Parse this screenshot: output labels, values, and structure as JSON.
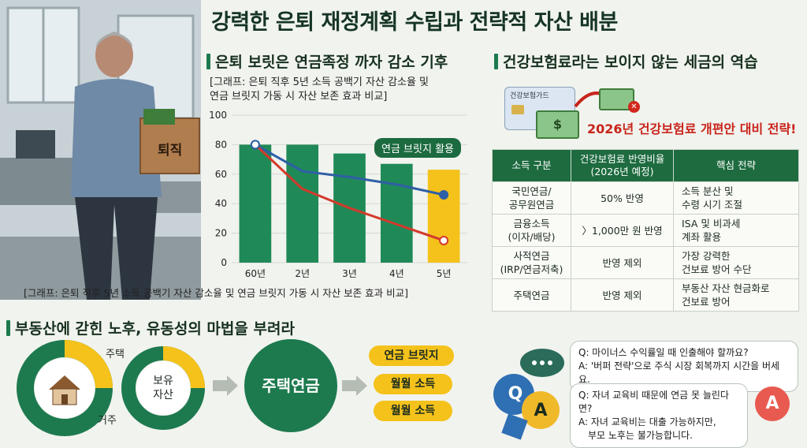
{
  "title": "강력한 은퇴 재정계획 수립과 전략적 자산 배분",
  "illustration": {
    "box_label": "퇴직"
  },
  "section_chart": {
    "heading": "은퇴 보릿은 연금족정 까자 감소 기후",
    "note_line1": "[그래프: 은퇴 직후 5년 소득 공백기 자산 감소율 및",
    "note_line2": "연금 브릿지 가동 시 자산 보존 효과 비교]",
    "caption": "[그래프: 은퇴 직후 5년 소득 공백기 자산 감소율 및 연금 브릿지 가동 시 자산 보존 효과 비교]",
    "callout": "연금 브릿지 활용"
  },
  "chart_data": {
    "type": "bar",
    "categories": [
      "60년",
      "2년",
      "3년",
      "4년",
      "5년"
    ],
    "values": [
      80,
      80,
      74,
      67,
      63
    ],
    "highlight_index": 4,
    "series": [
      {
        "values": [
          80,
          62,
          58,
          53,
          46
        ],
        "color": "#2f5fa6"
      },
      {
        "values": [
          80,
          50,
          37,
          26,
          15
        ],
        "color": "#d23a2c"
      }
    ],
    "ylim": [
      0,
      100
    ],
    "yticks": [
      "0",
      "20",
      "40",
      "60",
      "80",
      "100"
    ],
    "bar_color": "#1f8a58",
    "highlight_color": "#f4c21b"
  },
  "section_health": {
    "heading": "건강보험료라는 보이지 않는 세금의 역습",
    "card_label": "건강보험가드",
    "alert": "2026년 건강보험료 개편안 대비 전략!"
  },
  "table": {
    "headers": [
      "소득 구분",
      "건강보험료 반영비율\n(2026년 예정)",
      "핵심 전략"
    ],
    "rows": [
      [
        "국민연금/\n공무원연금",
        "50% 반영",
        "소득 분산 및\n수령 시기 조절"
      ],
      [
        "금융소득\n(이자/배당)",
        "〉1,000만 원 반영",
        "ISA 및 비과세\n계좌 활용"
      ],
      [
        "사적연금\n(IRP/연금저축)",
        "반영 제외",
        "가장 강력한\n건보료 방어 수단"
      ],
      [
        "주택연금",
        "반영 제외",
        "부동산 자산 현금화로\n건보료 방어"
      ]
    ]
  },
  "section_property": {
    "heading": "부동산에 갇힌 노후, 유동성의 마법을 부려라",
    "label_house": "주택",
    "label_live": "거주",
    "donut2_text": "보유\n자산",
    "center_circle": "주택연금",
    "pills": [
      "연금 브릿지",
      "월월 소득",
      "월월 소득"
    ]
  },
  "qa": {
    "q_badge": "Q",
    "a_badge": "A",
    "q1": "Q: 마이너스 수익률일 때 인출해야 할까요?",
    "a1": "A: '버퍼 전략'으로 주식 시장 회복까지 시간을 버세요.",
    "q2": "Q: 자녀 교육비 때문에 연금 못 늘린다면?",
    "a2_line1": "A: 자녀 교육비는 대출 가능하지만,",
    "a2_line2": "부모 노후는 불가능합니다."
  }
}
